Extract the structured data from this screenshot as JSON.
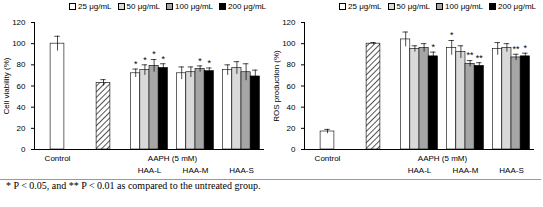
{
  "chart_data": [
    {
      "type": "bar",
      "ylabel": "Cell viability (%)",
      "legend": "top",
      "categories": [
        "Control",
        null,
        "HAA-L",
        "HAA-M",
        "HAA-S"
      ],
      "group_label": "AAPH (5 mM)",
      "ylim": [
        0,
        120
      ],
      "yticks": [
        0,
        20,
        40,
        60,
        80,
        100,
        120
      ],
      "reference": {
        "values": [
          100,
          63,
          null,
          null,
          null
        ],
        "errors": [
          7,
          3,
          null,
          null,
          null
        ],
        "colors": [
          "#ffffff",
          "#555555"
        ],
        "hatch": [
          false,
          true
        ]
      },
      "series": [
        {
          "name": "25 μg/mL",
          "color": "#ffffff",
          "values": [
            null,
            null,
            72,
            72,
            75
          ],
          "errors": [
            null,
            null,
            4,
            6,
            5
          ],
          "annotations": [
            null,
            null,
            "*",
            null,
            null
          ]
        },
        {
          "name": "50 μg/mL",
          "color": "#d9d9d9",
          "values": [
            null,
            null,
            75,
            73,
            77
          ],
          "errors": [
            null,
            null,
            5,
            5,
            6
          ],
          "annotations": [
            null,
            null,
            "*",
            null,
            null
          ]
        },
        {
          "name": "100 μg/mL",
          "color": "#a6a6a6",
          "values": [
            null,
            null,
            79,
            76,
            73
          ],
          "errors": [
            null,
            null,
            6,
            3,
            8
          ],
          "annotations": [
            null,
            null,
            "*",
            "*",
            null
          ]
        },
        {
          "name": "200 μg/mL",
          "color": "#000000",
          "values": [
            null,
            null,
            77,
            74,
            69
          ],
          "errors": [
            null,
            null,
            4,
            3,
            6
          ],
          "annotations": [
            null,
            null,
            "*",
            "*",
            null
          ]
        }
      ]
    },
    {
      "type": "bar",
      "ylabel": "ROS production (%)",
      "legend": "top",
      "categories": [
        "Control",
        null,
        "HAA-L",
        "HAA-M",
        "HAA-S"
      ],
      "group_label": "AAPH (5 mM)",
      "ylim": [
        0,
        120
      ],
      "yticks": [
        0,
        20,
        40,
        60,
        80,
        100,
        120
      ],
      "reference": {
        "values": [
          17,
          100,
          null,
          null,
          null
        ],
        "errors": [
          2,
          1,
          null,
          null,
          null
        ],
        "colors": [
          "#ffffff",
          "#555555"
        ],
        "hatch": [
          false,
          true
        ]
      },
      "series": [
        {
          "name": "25 μg/mL",
          "color": "#ffffff",
          "values": [
            null,
            null,
            104,
            96,
            95
          ],
          "errors": [
            null,
            null,
            7,
            7,
            6
          ],
          "annotations": [
            null,
            null,
            null,
            "*",
            null
          ]
        },
        {
          "name": "50 μg/mL",
          "color": "#d9d9d9",
          "values": [
            null,
            null,
            95,
            92,
            96
          ],
          "errors": [
            null,
            null,
            3,
            6,
            4
          ],
          "annotations": [
            null,
            null,
            null,
            null,
            null
          ]
        },
        {
          "name": "100 μg/mL",
          "color": "#a6a6a6",
          "values": [
            null,
            null,
            96,
            81,
            87
          ],
          "errors": [
            null,
            null,
            4,
            3,
            3
          ],
          "annotations": [
            null,
            null,
            null,
            "**",
            "**"
          ]
        },
        {
          "name": "200 μg/mL",
          "color": "#000000",
          "values": [
            null,
            null,
            88,
            79,
            88
          ],
          "errors": [
            null,
            null,
            4,
            3,
            3
          ],
          "annotations": [
            null,
            null,
            "*",
            "**",
            "*"
          ]
        }
      ]
    }
  ],
  "caption": "* P < 0.05, and ** P < 0.01 as compared to the untreated group."
}
